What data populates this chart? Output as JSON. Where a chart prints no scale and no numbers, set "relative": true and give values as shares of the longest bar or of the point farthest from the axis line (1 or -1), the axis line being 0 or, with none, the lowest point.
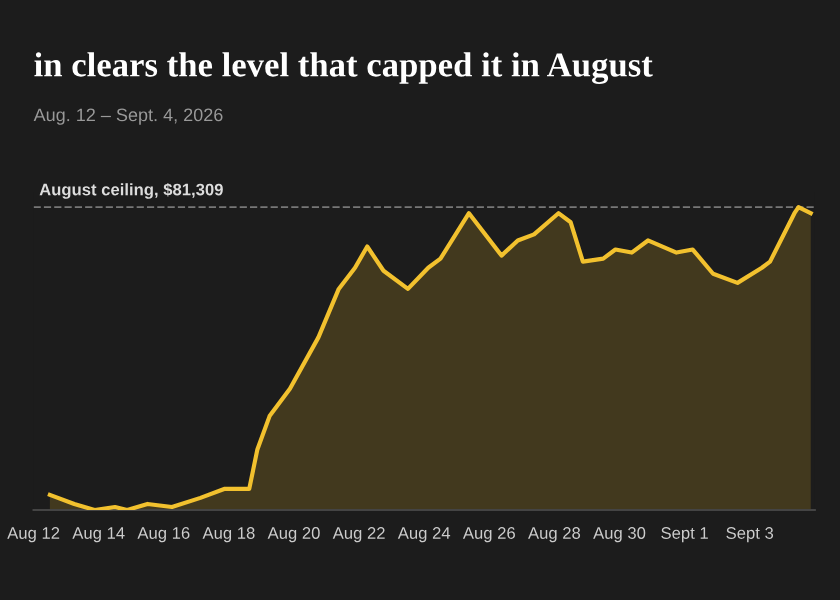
{
  "chart_data": {
    "type": "area",
    "title": "in clears the level that capped it in August",
    "subtitle": "Aug. 12 – Sept. 4, 2026",
    "relative": true,
    "legend": false,
    "grid": false,
    "marker": "none",
    "line_style": "solid",
    "x": [
      "2026-08-12T12:00",
      "2026-08-13T06:00",
      "2026-08-13T21:00",
      "2026-08-14T12:00",
      "2026-08-14T21:00",
      "2026-08-15T12:00",
      "2026-08-16T06:00",
      "2026-08-17T03:00",
      "2026-08-17T21:00",
      "2026-08-18T15:00",
      "2026-08-18T21:00",
      "2026-08-19T06:00",
      "2026-08-19T21:00",
      "2026-08-20T18:00",
      "2026-08-21T09:00",
      "2026-08-21T21:00",
      "2026-08-22T06:00",
      "2026-08-22T18:00",
      "2026-08-23T12:00",
      "2026-08-24T03:00",
      "2026-08-24T12:00",
      "2026-08-25T09:00",
      "2026-08-26T09:00",
      "2026-08-26T21:00",
      "2026-08-27T09:00",
      "2026-08-28T03:00",
      "2026-08-28T12:00",
      "2026-08-28T21:00",
      "2026-08-29T12:00",
      "2026-08-29T21:00",
      "2026-08-30T09:00",
      "2026-08-30T21:00",
      "2026-08-31T18:00",
      "2026-09-01T06:00",
      "2026-09-01T21:00",
      "2026-09-02T15:00",
      "2026-09-03T09:00",
      "2026-09-03T15:00",
      "2026-09-04T09:00",
      "2026-09-04T12:00",
      "2026-09-04T21:00"
    ],
    "series": [
      {
        "color": "#f2c12e",
        "values": [
          0.05,
          0.02,
          0,
          0.01,
          0,
          0.02,
          0.01,
          0.04,
          0.07,
          0.07,
          0.2,
          0.31,
          0.4,
          0.57,
          0.73,
          0.8,
          0.87,
          0.79,
          0.73,
          0.8,
          0.83,
          0.98,
          0.84,
          0.89,
          0.91,
          0.98,
          0.95,
          0.82,
          0.83,
          0.86,
          0.85,
          0.89,
          0.85,
          0.86,
          0.78,
          0.75,
          0.8,
          0.82,
          0.98,
          1,
          0.98
        ]
      }
    ],
    "xlim": [
      "2026-08-12",
      "2026-09-05"
    ],
    "xticks": [
      {
        "value": "2026-08-12",
        "label": "Aug 12"
      },
      {
        "value": "2026-08-14",
        "label": "Aug 14"
      },
      {
        "value": "2026-08-16",
        "label": "Aug 16"
      },
      {
        "value": "2026-08-18",
        "label": "Aug 18"
      },
      {
        "value": "2026-08-20",
        "label": "Aug 20"
      },
      {
        "value": "2026-08-22",
        "label": "Aug 22"
      },
      {
        "value": "2026-08-24",
        "label": "Aug 24"
      },
      {
        "value": "2026-08-26",
        "label": "Aug 26"
      },
      {
        "value": "2026-08-28",
        "label": "Aug 28"
      },
      {
        "value": "2026-08-30",
        "label": "Aug 30"
      },
      {
        "value": "2026-09-01",
        "label": "Sept 1"
      },
      {
        "value": "2026-09-03",
        "label": "Sept 3"
      }
    ],
    "ref_lines": [
      {
        "axis": "y",
        "value": 1,
        "label": "August ceiling, $81,309",
        "color": "#777777",
        "line_style": "dashed"
      }
    ]
  }
}
